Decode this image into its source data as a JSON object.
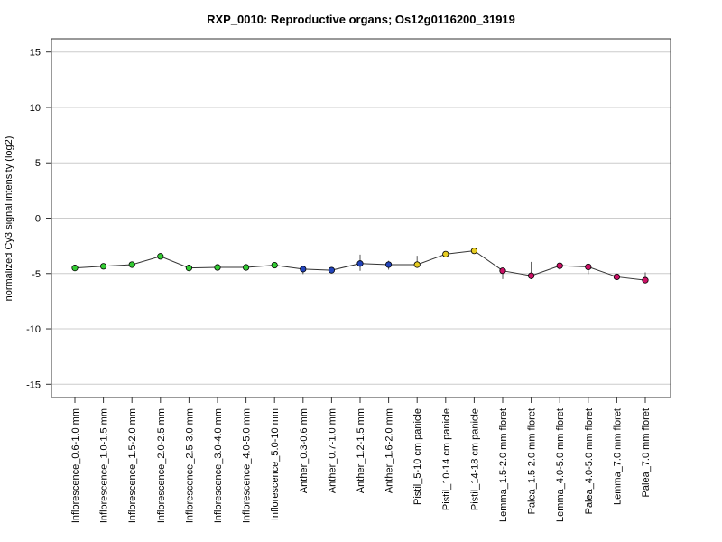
{
  "chart_data": {
    "type": "line",
    "title": "RXP_0010: Reproductive organs; Os12g0116200_31919",
    "xlabel": "",
    "ylabel": "normalized Cy3 signal intensity (log2)",
    "ylim": [
      -16.2,
      16.2
    ],
    "yticks": [
      15,
      10,
      5,
      0,
      -5,
      -10,
      -15
    ],
    "grid": "horizontal",
    "categories": [
      "Inflorescence_0.6-1.0 mm",
      "Inflorescence_1.0-1.5 mm",
      "Inflorescence_1.5-2.0 mm",
      "Inflorescence_2.0-2.5 mm",
      "Inflorescence_2.5-3.0 mm",
      "Inflorescence_3.0-4.0 mm",
      "Inflorescence_4.0-5.0 mm",
      "Inflorescence_5.0-10 mm",
      "Anther_0.3-0.6 mm",
      "Anther_0.7-1.0 mm",
      "Anther_1.2-1.5 mm",
      "Anther_1.6-2.0 mm",
      "Pistil_5-10 cm panicle",
      "Pistil_10-14 cm panicle",
      "Pistil_14-18 cm panicle",
      "Lemma_1.5-2.0 mm floret",
      "Palea_1.5-2.0 mm floret",
      "Lemma_4.0-5.0 mm floret",
      "Palea_4.0-5.0 mm floret",
      "Lemma_7.0 mm floret",
      "Palea_7.0 mm floret"
    ],
    "values": [
      -4.5,
      -4.35,
      -4.2,
      -3.45,
      -4.5,
      -4.45,
      -4.45,
      -4.25,
      -4.6,
      -4.7,
      -4.1,
      -4.2,
      -4.2,
      -3.25,
      -2.95,
      -4.75,
      -5.2,
      -4.3,
      -4.4,
      -5.3,
      -5.6
    ],
    "error_low": [
      -4.5,
      -4.35,
      -4.2,
      -3.6,
      -4.5,
      -4.45,
      -4.45,
      -4.25,
      -5.05,
      -4.85,
      -4.75,
      -4.65,
      -4.4,
      -3.25,
      -2.95,
      -5.5,
      -5.5,
      -4.65,
      -5.05,
      -5.3,
      -5.75
    ],
    "error_high": [
      -4.5,
      -4.35,
      -4.2,
      -3.2,
      -4.5,
      -4.45,
      -4.45,
      -4.25,
      -4.4,
      -4.6,
      -3.3,
      -3.85,
      -3.4,
      -3.25,
      -2.95,
      -4.55,
      -3.95,
      -4.05,
      -4.2,
      -5.3,
      -4.9
    ],
    "point_colors": [
      "#33cc33",
      "#33cc33",
      "#33cc33",
      "#33cc33",
      "#33cc33",
      "#33cc33",
      "#33cc33",
      "#33cc33",
      "#2244bb",
      "#2244bb",
      "#2244bb",
      "#2244bb",
      "#e6cc22",
      "#e6cc22",
      "#e6cc22",
      "#cc1166",
      "#cc1166",
      "#cc1166",
      "#cc1166",
      "#cc1166",
      "#cc1166"
    ],
    "line_color": "#333333"
  }
}
